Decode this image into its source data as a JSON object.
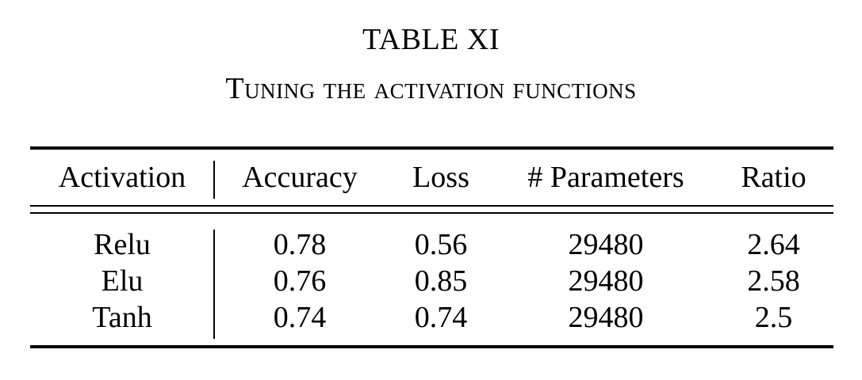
{
  "table": {
    "label": "TABLE XI",
    "caption": "Tuning the activation functions",
    "columns": [
      "Activation",
      "Accuracy",
      "Loss",
      "# Parameters",
      "Ratio"
    ],
    "rows": [
      [
        "Relu",
        "0.78",
        "0.56",
        "29480",
        "2.64"
      ],
      [
        "Elu",
        "0.76",
        "0.85",
        "29480",
        "2.58"
      ],
      [
        "Tanh",
        "0.74",
        "0.74",
        "29480",
        "2.5"
      ]
    ]
  }
}
